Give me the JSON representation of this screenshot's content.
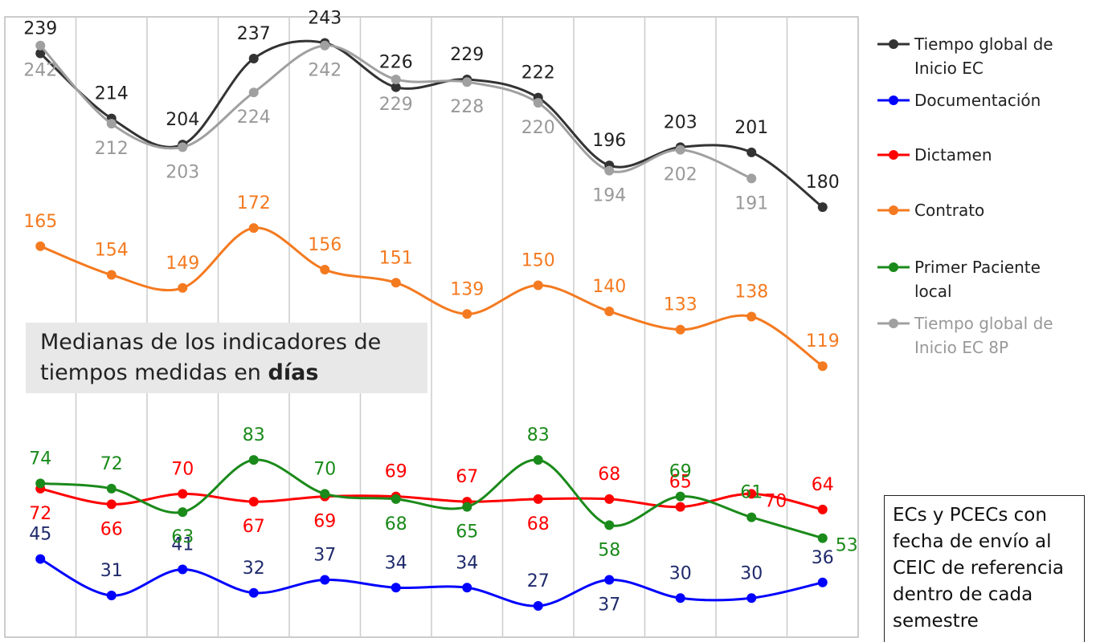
{
  "chart_data": {
    "type": "line",
    "categories": [
      null,
      null,
      null,
      null,
      null,
      null,
      null,
      null,
      null,
      null,
      null,
      null
    ],
    "series": [
      {
        "name": "Tiempo global de Inicio EC",
        "color": "#333333",
        "values": [
          239,
          214,
          204,
          237,
          243,
          226,
          229,
          222,
          196,
          203,
          201,
          180
        ]
      },
      {
        "name": "Documentación",
        "color": "#0000ff",
        "values": [
          45,
          31,
          41,
          32,
          37,
          34,
          34,
          27,
          37,
          30,
          30,
          36
        ]
      },
      {
        "name": "Dictamen",
        "color": "#ff0000",
        "values": [
          72,
          66,
          70,
          67,
          69,
          69,
          67,
          68,
          68,
          65,
          70,
          64
        ]
      },
      {
        "name": "Contrato",
        "color": "#f47a20",
        "values": [
          165,
          154,
          149,
          172,
          156,
          151,
          139,
          150,
          140,
          133,
          138,
          119
        ]
      },
      {
        "name": "Primer Paciente local",
        "color": "#1a8a1a",
        "values": [
          74,
          72,
          63,
          83,
          70,
          68,
          65,
          83,
          58,
          69,
          61,
          53
        ]
      },
      {
        "name": "Tiempo global de Inicio EC 8P",
        "color": "#a0a0a0",
        "values": [
          242,
          212,
          203,
          224,
          242,
          229,
          228,
          220,
          194,
          202,
          191,
          null
        ]
      }
    ],
    "ylim": [
      15,
      253
    ],
    "annotation": "Medianas de los indicadores de tiempos medidas en",
    "annotation_bold": "días",
    "note": "ECs y PCECs con fecha de envío al CEIC de referencia dentro de cada semestre"
  }
}
